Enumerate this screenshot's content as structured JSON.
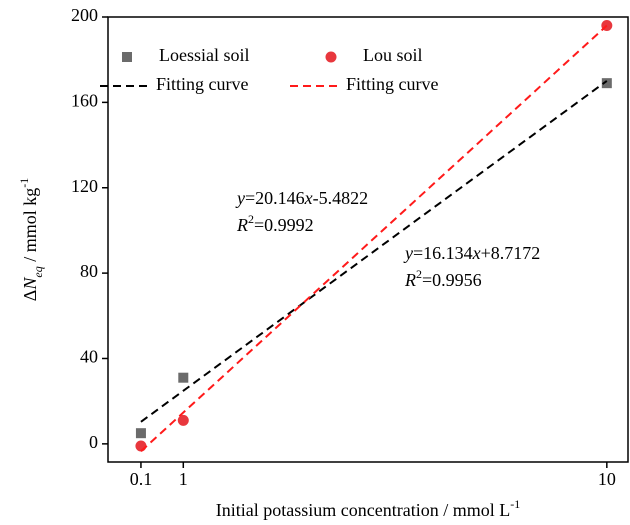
{
  "chart_data": {
    "type": "scatter",
    "x_label_parts": [
      {
        "text": "Initial potassium concentration / mmol L"
      },
      {
        "text": "-1",
        "style": "sup"
      }
    ],
    "y_label_parts": [
      {
        "text": "Δ"
      },
      {
        "text": "N",
        "style": "italic"
      },
      {
        "text": "eq",
        "style": "sub-italic"
      },
      {
        "text": " / mmol kg"
      },
      {
        "text": "-1",
        "style": "sup"
      }
    ],
    "xlim": [
      -0.6,
      10.45
    ],
    "xticks": [
      0.1,
      1,
      10
    ],
    "ylim": [
      -8.5,
      200
    ],
    "yticks": [
      0,
      40,
      80,
      120,
      160,
      200
    ],
    "legend": "top-left",
    "series": [
      {
        "name": "Loessial soil",
        "style": "square",
        "color": "#6b6b6b",
        "x": [
          0.1,
          1,
          10
        ],
        "values": [
          5,
          31,
          169
        ]
      },
      {
        "name": "Lou soil",
        "style": "circle",
        "color": "#e8373d",
        "x": [
          0.1,
          1,
          10
        ],
        "values": [
          -1,
          11,
          196
        ]
      },
      {
        "name": "Fitting curve",
        "style": "dashed",
        "color": "#000000",
        "x": [
          0.1,
          10
        ],
        "values": [
          10.33,
          170.06
        ]
      },
      {
        "name": "Fitting curve",
        "style": "dashed",
        "color": "#ff1a1a",
        "x": [
          0.1,
          10
        ],
        "values": [
          -3.47,
          196
        ]
      }
    ],
    "annotations": [
      {
        "color": "#ff1a1a",
        "lines": [
          [
            {
              "text": "y",
              "style": "italic"
            },
            {
              "text": "=20.146"
            },
            {
              "text": "x",
              "style": "italic"
            },
            {
              "text": "-5.4822"
            }
          ],
          [
            {
              "text": "R",
              "style": "italic"
            },
            {
              "text": "2",
              "style": "sup"
            },
            {
              "text": "=0.9992"
            }
          ]
        ]
      },
      {
        "color": "#000000",
        "lines": [
          [
            {
              "text": "y",
              "style": "italic"
            },
            {
              "text": "=16.134"
            },
            {
              "text": "x",
              "style": "italic"
            },
            {
              "text": "+8.7172"
            }
          ],
          [
            {
              "text": "R",
              "style": "italic"
            },
            {
              "text": "2",
              "style": "sup"
            },
            {
              "text": "=0.9956"
            }
          ]
        ]
      }
    ]
  }
}
